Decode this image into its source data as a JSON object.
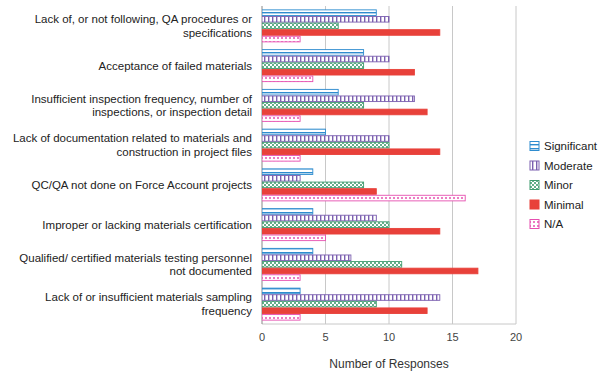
{
  "chart_data": {
    "type": "bar",
    "orientation": "horizontal",
    "grid": true,
    "legend": "right",
    "x_label": "Number of Responses",
    "categories": [
      "Lack of, or not following, QA procedures or specifications",
      "Acceptance of failed materials",
      "Insufficient inspection frequency, number of inspections, or inspection detail",
      "Lack of documentation related to materials and construction in project files",
      "QC/QA not done on Force Account projects",
      "Improper or lacking materials certification",
      "Qualified/ certified materials testing personnel not documented",
      "Lack of or insufficient materials sampling frequency"
    ],
    "series": [
      {
        "name": "Significant",
        "color": "#2e8ccf",
        "values": [
          9,
          8,
          6,
          5,
          4,
          4,
          4,
          3
        ]
      },
      {
        "name": "Moderate",
        "color": "#7b5fb0",
        "values": [
          10,
          10,
          12,
          10,
          3,
          9,
          7,
          14
        ]
      },
      {
        "name": "Minor",
        "color": "#3f9b6e",
        "values": [
          6,
          8,
          8,
          10,
          8,
          10,
          11,
          9
        ]
      },
      {
        "name": "Minimal",
        "color": "#e8413a",
        "values": [
          14,
          12,
          13,
          14,
          9,
          14,
          17,
          13
        ]
      },
      {
        "name": "N/A",
        "color": "#e64fb0",
        "values": [
          3,
          4,
          3,
          3,
          16,
          5,
          3,
          3
        ]
      }
    ],
    "xlim": [
      0,
      20
    ],
    "xticks": [
      0,
      5,
      10,
      15,
      20
    ]
  }
}
